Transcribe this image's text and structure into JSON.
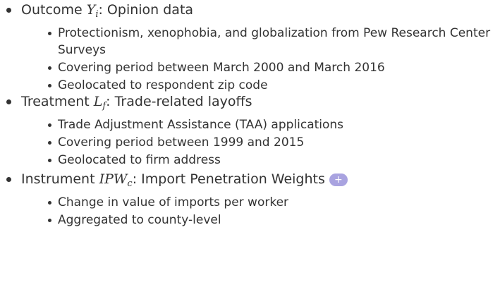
{
  "slide": {
    "items": [
      {
        "lead": "Outcome",
        "var": "Y",
        "sub": "i",
        "text": ": Opinion data",
        "subitems": [
          "Protectionism, xenophobia, and globalization from Pew Research Center Surveys",
          "Covering period between March 2000 and March 2016",
          "Geolocated to respondent zip code"
        ]
      },
      {
        "lead": "Treatment",
        "var": "L",
        "sub": "f",
        "text": ": Trade-related layoffs",
        "subitems": [
          "Trade Adjustment Assistance (TAA) applications",
          "Covering period between 1999 and 2015",
          "Geolocated to firm address"
        ]
      },
      {
        "lead": "Instrument",
        "var": "IPW",
        "sub": "c",
        "text": ": Import Penetration Weights",
        "button": "+",
        "subitems": [
          "Change in value of imports per worker",
          "Aggregated to county-level"
        ]
      }
    ]
  }
}
